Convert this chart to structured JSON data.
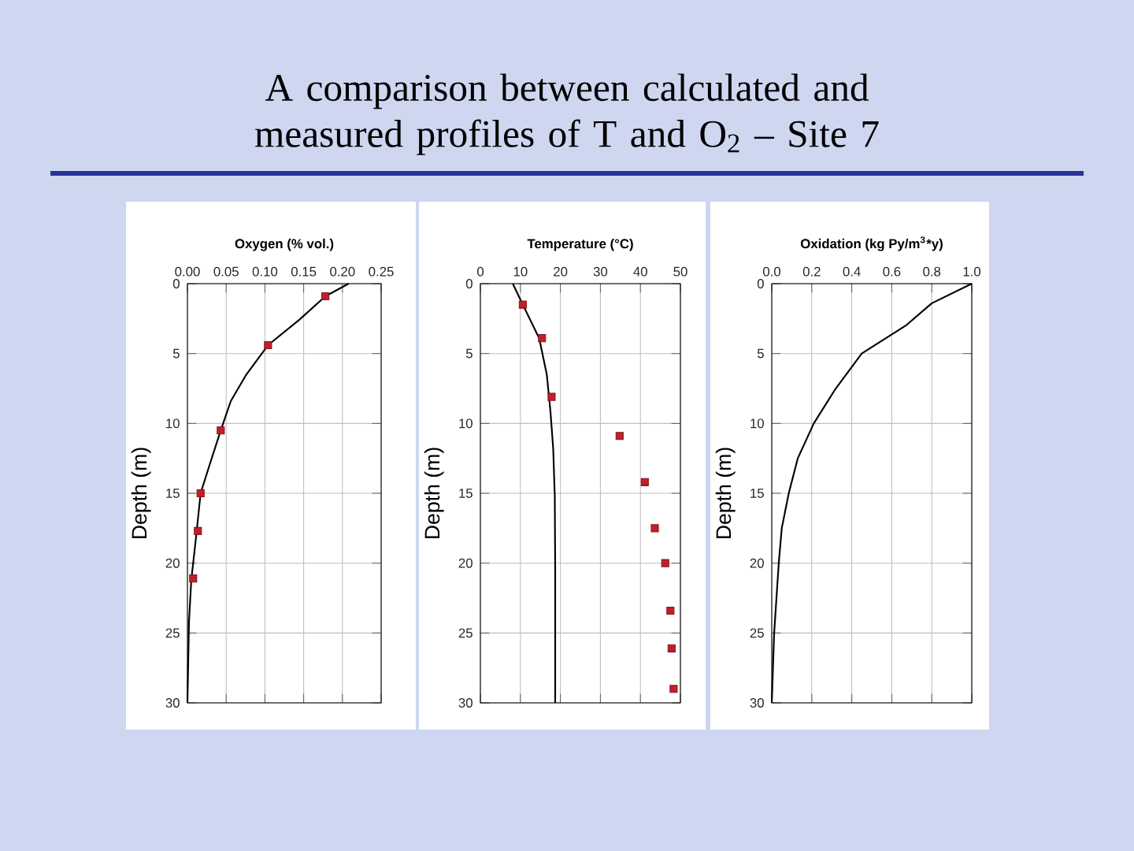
{
  "chart_data": [
    {
      "type": "line",
      "title": "A comparison between calculated and measured profiles of  T and O$_{2}$ – Site 7",
      "xlabel": "Oxygen (% vol.)",
      "ylabel": "Depth (m)",
      "xlim": [
        0,
        0.25
      ],
      "xticks": [
        {
          "value": 0,
          "label": "0.00"
        },
        {
          "value": 0.05,
          "label": "0.05"
        },
        {
          "value": 0.1,
          "label": "0.10"
        },
        {
          "value": 0.15,
          "label": "0.15"
        },
        {
          "value": 0.2,
          "label": "0.20"
        },
        {
          "value": 0.25,
          "label": "0.25"
        }
      ],
      "ylim": [
        30,
        0
      ],
      "yticks": [
        0,
        5,
        10,
        15,
        20,
        25,
        30
      ],
      "grid": true,
      "series": [
        {
          "type": "line",
          "color": "#000000",
          "x": [
            0.208,
            0.178,
            0.144,
            0.104,
            0.076,
            0.056,
            0.043,
            0.029,
            0.017,
            0.011,
            0.005,
            0.002,
            0.0
          ],
          "values": [
            0,
            0.9,
            2.6,
            4.4,
            6.5,
            8.4,
            10.5,
            12.9,
            15.0,
            18.2,
            21.2,
            24.2,
            30
          ]
        },
        {
          "type": "scatter",
          "color": "#c0202a",
          "marker": "square",
          "x": [
            0.178,
            0.104,
            0.043,
            0.017,
            0.0135,
            0.0074
          ],
          "values": [
            0.9,
            4.4,
            10.5,
            15.0,
            17.7,
            21.1
          ]
        }
      ]
    },
    {
      "type": "line",
      "xlabel": "Temperature (°C)",
      "ylabel": "Depth (m)",
      "xlim": [
        0,
        50
      ],
      "xticks": [
        0,
        10,
        20,
        30,
        40,
        50
      ],
      "ylim": [
        30,
        0
      ],
      "yticks": [
        0,
        5,
        10,
        15,
        20,
        25,
        30
      ],
      "grid": true,
      "series": [
        {
          "type": "line",
          "color": "#000000",
          "x": [
            8.1,
            10.6,
            14.7,
            16.6,
            17.5,
            18.2,
            18.6,
            18.7,
            18.7
          ],
          "values": [
            0,
            1.5,
            3.9,
            6.5,
            9.1,
            11.8,
            15.2,
            20.4,
            30
          ]
        },
        {
          "type": "scatter",
          "color": "#c0202a",
          "marker": "square",
          "x": [
            10.6,
            15.4,
            17.8,
            34.8,
            41.1,
            43.6,
            46.2,
            47.5,
            47.8,
            48.3
          ],
          "values": [
            1.5,
            3.9,
            8.1,
            10.9,
            14.2,
            17.5,
            20.0,
            23.4,
            26.1,
            29.0
          ]
        }
      ]
    },
    {
      "type": "line",
      "xlabel": "Oxidation (kg Py/m$^{3}$*y)",
      "ylabel": "Depth (m)",
      "xlim": [
        0,
        1.0
      ],
      "xticks": [
        {
          "value": 0,
          "label": "0.0"
        },
        {
          "value": 0.2,
          "label": "0.2"
        },
        {
          "value": 0.4,
          "label": "0.4"
        },
        {
          "value": 0.6,
          "label": "0.6"
        },
        {
          "value": 0.8,
          "label": "0.8"
        },
        {
          "value": 1.0,
          "label": "1.0"
        }
      ],
      "ylim": [
        30,
        0
      ],
      "yticks": [
        0,
        5,
        10,
        15,
        20,
        25,
        30
      ],
      "grid": true,
      "series": [
        {
          "type": "line",
          "color": "#000000",
          "x": [
            1.0,
            0.8,
            0.67,
            0.45,
            0.32,
            0.21,
            0.13,
            0.085,
            0.05,
            0.035,
            0.012,
            0.0
          ],
          "values": [
            0,
            1.4,
            3.0,
            5.0,
            7.5,
            10.0,
            12.5,
            15.0,
            17.5,
            20.0,
            25.0,
            30
          ]
        }
      ]
    }
  ]
}
